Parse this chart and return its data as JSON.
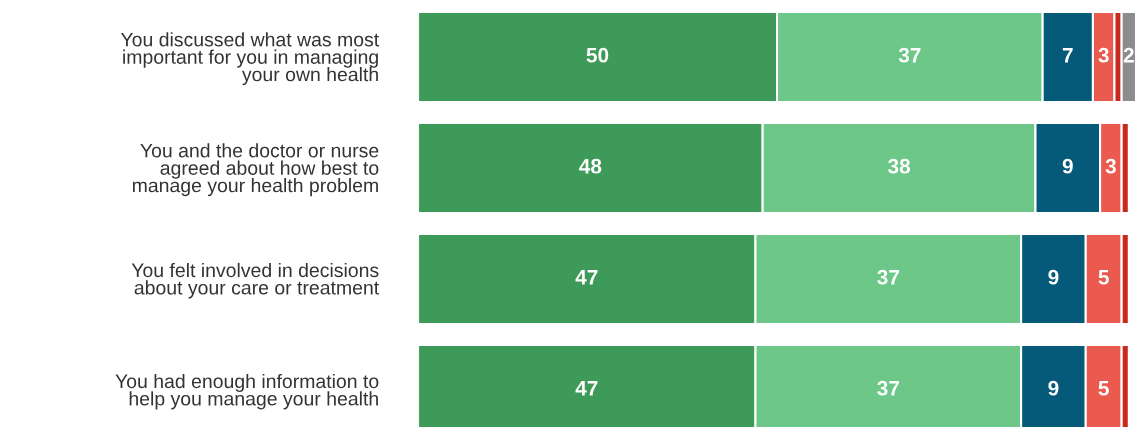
{
  "chart_data": {
    "type": "bar",
    "orientation": "horizontal",
    "stacked": true,
    "categories": [
      "You discussed what was most\nimportant for you in managing\nyour own health",
      "You and the doctor or nurse\nagreed about how best to\nmanage your health problem",
      "You felt involved in decisions\nabout your care or treatment",
      "You had enough information to\nhelp you manage your health"
    ],
    "xlim": [
      0,
      100
    ],
    "tick_labels": "y",
    "series": [
      {
        "color": "#3d9a58",
        "values": [
          50,
          48,
          47,
          47
        ],
        "value_labels": [
          "50",
          "48",
          "47",
          "47"
        ]
      },
      {
        "color": "#6cc788",
        "values": [
          37,
          38,
          37,
          37
        ],
        "value_labels": [
          "37",
          "38",
          "37",
          "37"
        ]
      },
      {
        "color": "#045a78",
        "values": [
          7,
          9,
          9,
          9
        ],
        "value_labels": [
          "7",
          "9",
          "9",
          "9"
        ]
      },
      {
        "color": "#eb5a4f",
        "values": [
          3,
          3,
          5,
          5
        ],
        "value_labels": [
          "3",
          "3",
          "5",
          "5"
        ]
      },
      {
        "color": "#c8281e",
        "values": [
          1,
          1,
          1,
          1
        ]
      },
      {
        "color": "#8c8c8c",
        "values": [
          2,
          null,
          null,
          null
        ],
        "value_labels": [
          "2",
          null,
          null,
          null
        ]
      }
    ]
  }
}
